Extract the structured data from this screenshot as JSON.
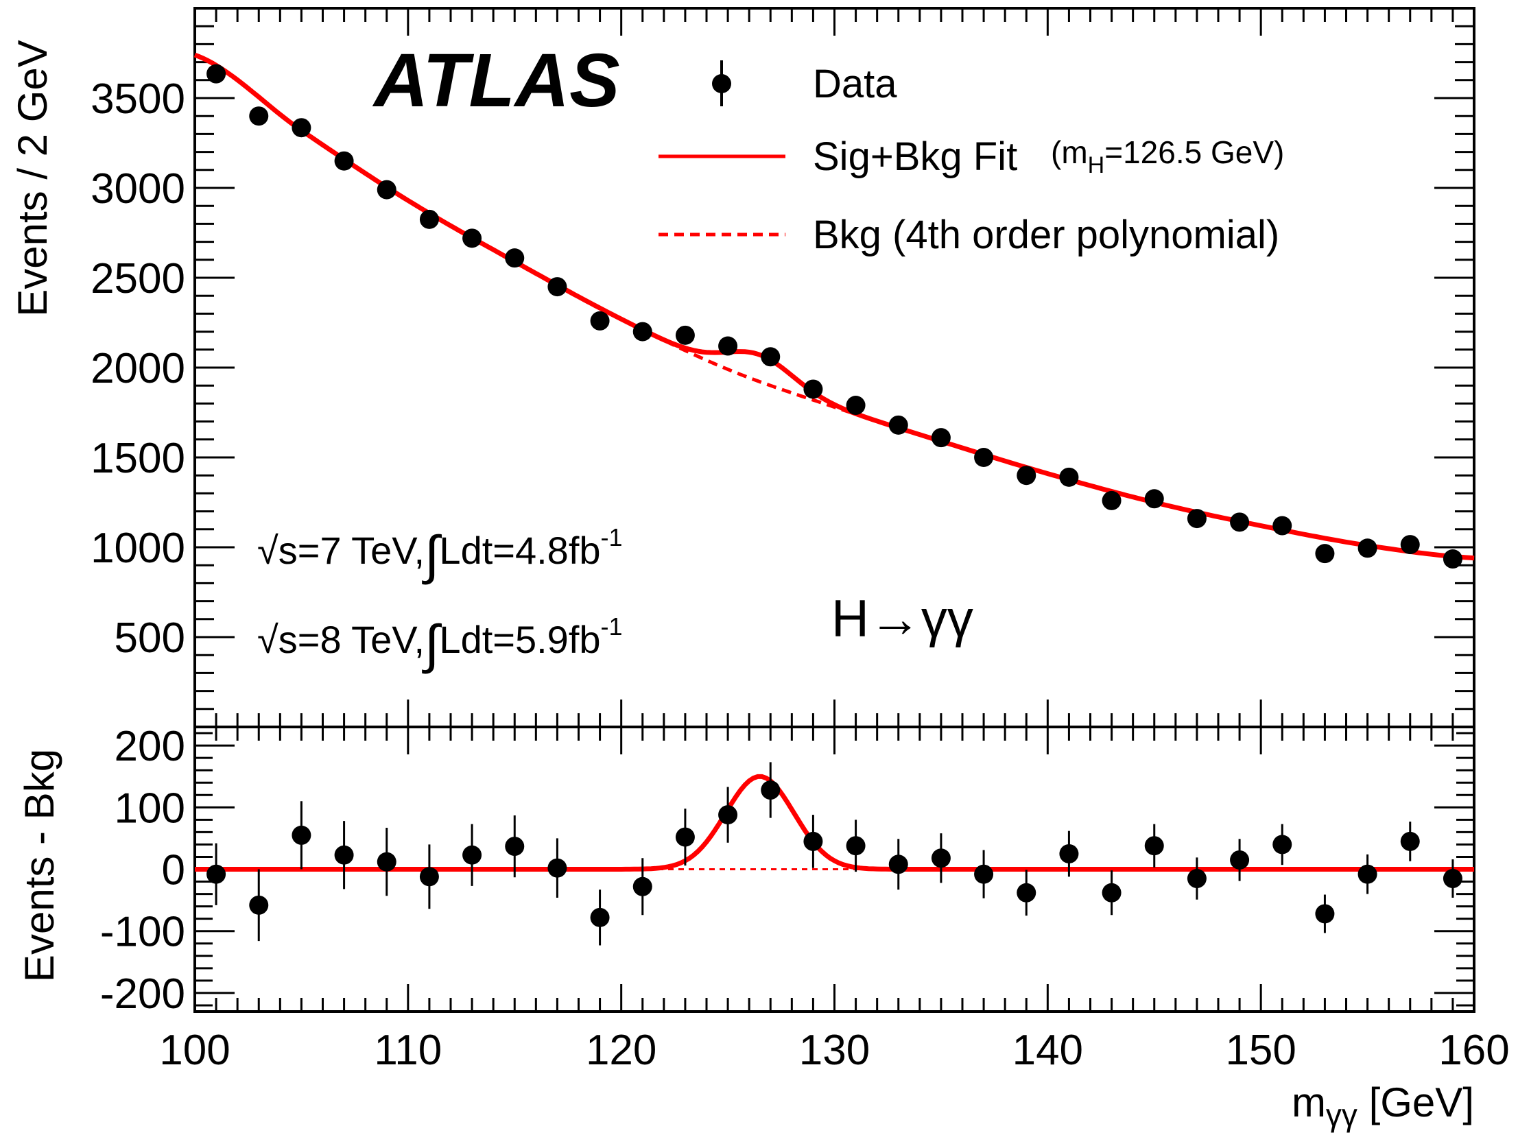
{
  "chart_data": {
    "type": "scatter",
    "experiment": "ATLAS",
    "channel": "H→γγ",
    "energy_lines": [
      {
        "sqrt": "√",
        "energy": "s=7 TeV,",
        "integral": "∫",
        "lumi": "Ldt=4.8fb",
        "sup": "-1"
      },
      {
        "sqrt": "√",
        "energy": "s=8 TeV,",
        "integral": "∫",
        "lumi": "Ldt=5.9fb",
        "sup": "-1"
      }
    ],
    "legend": {
      "data": "Data",
      "fit": "Sig+Bkg Fit",
      "fit_note": {
        "pre": "(m",
        "sub": "H",
        "post": "=126.5 GeV)"
      },
      "bkg": "Bkg (4th order polynomial)"
    },
    "xlabel": {
      "main": "m",
      "sub": "γγ",
      "unit": " [GeV]"
    },
    "xlim": [
      100,
      160
    ],
    "xticks": [
      100,
      110,
      120,
      130,
      140,
      150,
      160
    ],
    "xtick_labels": [
      "100",
      "110",
      "120",
      "130",
      "140",
      "150",
      "160"
    ],
    "colors": {
      "fit": "#ff0000",
      "data": "#000000"
    },
    "signal": {
      "mass": 126.5,
      "sigma": 1.6,
      "amplitude": 150
    },
    "top_panel": {
      "ylabel": "Events / 2 GeV",
      "ylim": [
        0,
        4000
      ],
      "yticks": [
        500,
        1000,
        1500,
        2000,
        2500,
        3000,
        3500
      ],
      "ytick_labels": [
        "500",
        "1000",
        "1500",
        "2000",
        "2500",
        "3000",
        "3500"
      ],
      "data": [
        {
          "x": 101,
          "y": 3635
        },
        {
          "x": 103,
          "y": 3400
        },
        {
          "x": 105,
          "y": 3335
        },
        {
          "x": 107,
          "y": 3150
        },
        {
          "x": 109,
          "y": 2990
        },
        {
          "x": 111,
          "y": 2825
        },
        {
          "x": 113,
          "y": 2720
        },
        {
          "x": 115,
          "y": 2610
        },
        {
          "x": 117,
          "y": 2450
        },
        {
          "x": 119,
          "y": 2260
        },
        {
          "x": 121,
          "y": 2200
        },
        {
          "x": 123,
          "y": 2180
        },
        {
          "x": 125,
          "y": 2120
        },
        {
          "x": 127,
          "y": 2060
        },
        {
          "x": 129,
          "y": 1880
        },
        {
          "x": 131,
          "y": 1790
        },
        {
          "x": 133,
          "y": 1680
        },
        {
          "x": 135,
          "y": 1610
        },
        {
          "x": 137,
          "y": 1500
        },
        {
          "x": 139,
          "y": 1400
        },
        {
          "x": 141,
          "y": 1390
        },
        {
          "x": 143,
          "y": 1260
        },
        {
          "x": 145,
          "y": 1270
        },
        {
          "x": 147,
          "y": 1160
        },
        {
          "x": 149,
          "y": 1140
        },
        {
          "x": 151,
          "y": 1120
        },
        {
          "x": 153,
          "y": 965
        },
        {
          "x": 155,
          "y": 995
        },
        {
          "x": 157,
          "y": 1015
        },
        {
          "x": 159,
          "y": 935
        }
      ],
      "bkg_curve": [
        {
          "x": 100,
          "y": 3740
        },
        {
          "x": 105,
          "y": 3320
        },
        {
          "x": 110,
          "y": 2930
        },
        {
          "x": 115,
          "y": 2590
        },
        {
          "x": 120,
          "y": 2270
        },
        {
          "x": 125,
          "y": 1990
        },
        {
          "x": 130,
          "y": 1780
        },
        {
          "x": 135,
          "y": 1590
        },
        {
          "x": 140,
          "y": 1410
        },
        {
          "x": 145,
          "y": 1250
        },
        {
          "x": 150,
          "y": 1120
        },
        {
          "x": 155,
          "y": 1010
        },
        {
          "x": 160,
          "y": 940
        }
      ]
    },
    "bottom_panel": {
      "ylabel": "Events - Bkg",
      "ylim": [
        -230,
        230
      ],
      "yticks": [
        -200,
        -100,
        0,
        100,
        200
      ],
      "ytick_labels": [
        "-200",
        "-100",
        "0",
        "100",
        "200"
      ],
      "data": [
        {
          "x": 101,
          "y": -8,
          "err": 50
        },
        {
          "x": 103,
          "y": -58,
          "err": 58
        },
        {
          "x": 105,
          "y": 55,
          "err": 55
        },
        {
          "x": 107,
          "y": 23,
          "err": 55
        },
        {
          "x": 109,
          "y": 12,
          "err": 55
        },
        {
          "x": 111,
          "y": -12,
          "err": 52
        },
        {
          "x": 113,
          "y": 23,
          "err": 50
        },
        {
          "x": 115,
          "y": 37,
          "err": 50
        },
        {
          "x": 117,
          "y": 2,
          "err": 48
        },
        {
          "x": 119,
          "y": -78,
          "err": 45
        },
        {
          "x": 121,
          "y": -28,
          "err": 46
        },
        {
          "x": 123,
          "y": 52,
          "err": 46
        },
        {
          "x": 125,
          "y": 88,
          "err": 45
        },
        {
          "x": 127,
          "y": 128,
          "err": 45
        },
        {
          "x": 129,
          "y": 45,
          "err": 43
        },
        {
          "x": 131,
          "y": 38,
          "err": 42
        },
        {
          "x": 133,
          "y": 8,
          "err": 41
        },
        {
          "x": 135,
          "y": 18,
          "err": 40
        },
        {
          "x": 137,
          "y": -8,
          "err": 39
        },
        {
          "x": 139,
          "y": -38,
          "err": 37
        },
        {
          "x": 141,
          "y": 25,
          "err": 37
        },
        {
          "x": 143,
          "y": -38,
          "err": 36
        },
        {
          "x": 145,
          "y": 38,
          "err": 35
        },
        {
          "x": 147,
          "y": -15,
          "err": 34
        },
        {
          "x": 149,
          "y": 15,
          "err": 34
        },
        {
          "x": 151,
          "y": 40,
          "err": 33
        },
        {
          "x": 153,
          "y": -72,
          "err": 31
        },
        {
          "x": 155,
          "y": -8,
          "err": 32
        },
        {
          "x": 157,
          "y": 45,
          "err": 32
        },
        {
          "x": 159,
          "y": -15,
          "err": 31
        }
      ]
    }
  }
}
